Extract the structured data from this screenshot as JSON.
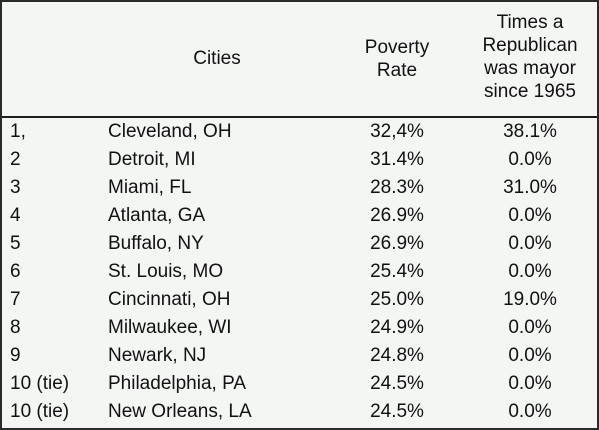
{
  "table": {
    "headers": {
      "cities": "Cities",
      "poverty_rate": "Poverty\nRate",
      "republican_mayor": "Times a\nRepublican\nwas mayor\nsince 1965"
    },
    "rows": [
      {
        "rank": "1,",
        "city": "Cleveland, OH",
        "poverty_rate": "32,4%",
        "republican_mayor": "38.1%"
      },
      {
        "rank": "2",
        "city": "Detroit, MI",
        "poverty_rate": "31.4%",
        "republican_mayor": "0.0%"
      },
      {
        "rank": "3",
        "city": "Miami, FL",
        "poverty_rate": "28.3%",
        "republican_mayor": "31.0%"
      },
      {
        "rank": "4",
        "city": "Atlanta, GA",
        "poverty_rate": "26.9%",
        "republican_mayor": "0.0%"
      },
      {
        "rank": "5",
        "city": "Buffalo, NY",
        "poverty_rate": "26.9%",
        "republican_mayor": "0.0%"
      },
      {
        "rank": "6",
        "city": "St. Louis, MO",
        "poverty_rate": "25.4%",
        "republican_mayor": "0.0%"
      },
      {
        "rank": "7",
        "city": "Cincinnati, OH",
        "poverty_rate": "25.0%",
        "republican_mayor": "19.0%"
      },
      {
        "rank": "8",
        "city": "Milwaukee, WI",
        "poverty_rate": "24.9%",
        "republican_mayor": "0.0%"
      },
      {
        "rank": "9",
        "city": "Newark, NJ",
        "poverty_rate": "24.8%",
        "republican_mayor": "0.0%"
      },
      {
        "rank": "10 (tie)",
        "city": "Philadelphia, PA",
        "poverty_rate": "24.5%",
        "republican_mayor": "0.0%"
      },
      {
        "rank": "10 (tie)",
        "city": "New Orleans, LA",
        "poverty_rate": "24.5%",
        "republican_mayor": "0.0%"
      }
    ]
  }
}
